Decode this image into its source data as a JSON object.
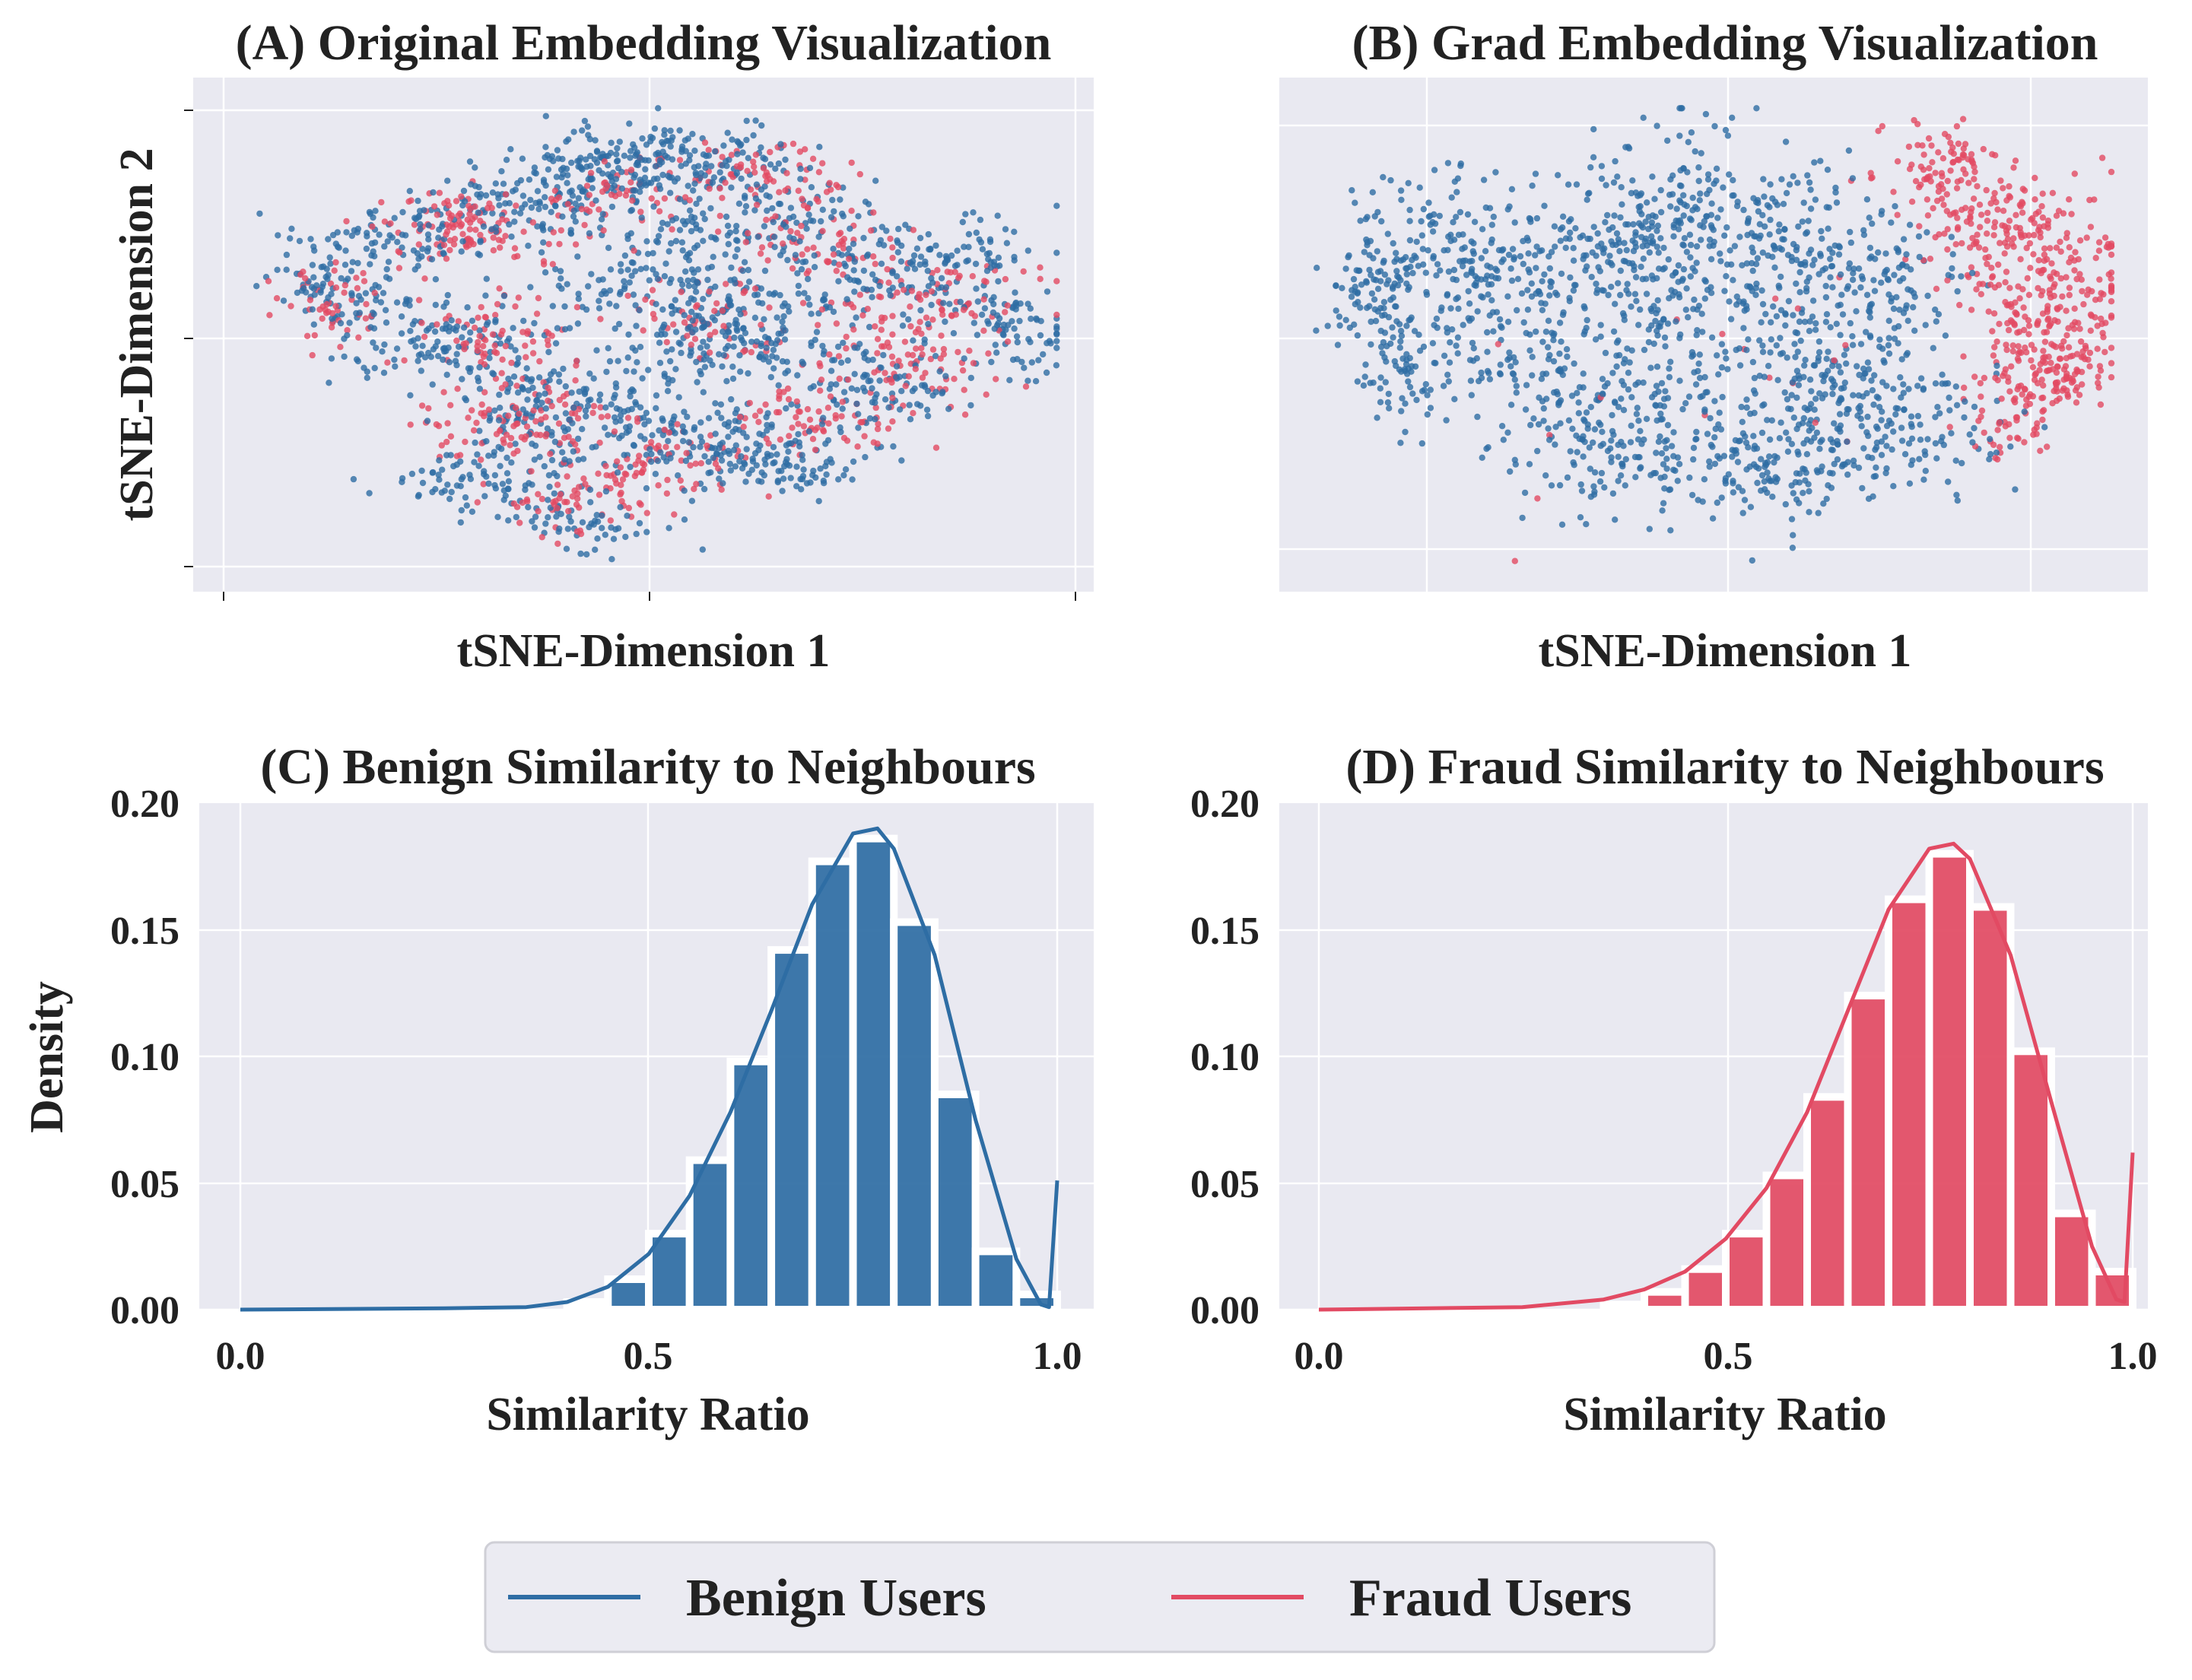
{
  "colors": {
    "benign": "#2e6da4",
    "fraud": "#e24a63",
    "panel_bg": "#e9e9f1",
    "grid": "#ffffff"
  },
  "legend": {
    "benign": "Benign Users",
    "fraud": "Fraud Users"
  },
  "chart_data": [
    {
      "id": "A",
      "type": "scatter",
      "title": "(A) Original Embedding Visualization",
      "xlabel": "tSNE-Dimension 1",
      "ylabel": "tSNE-Dimension 2",
      "xlim": [
        -6,
        6
      ],
      "ylim": [
        -6,
        6
      ],
      "grid": true,
      "series": [
        {
          "name": "Benign Users",
          "color_key": "benign",
          "clusters": [
            {
              "cx": -4.3,
              "cy": 1.2,
              "sx": 0.5,
              "sy": 0.6,
              "n": 90
            },
            {
              "cx": -3.5,
              "cy": 2.4,
              "sx": 0.6,
              "sy": 0.5,
              "n": 80
            },
            {
              "cx": -2.8,
              "cy": -0.3,
              "sx": 0.7,
              "sy": 0.6,
              "n": 120
            },
            {
              "cx": -1.8,
              "cy": 3.2,
              "sx": 0.6,
              "sy": 0.5,
              "n": 90
            },
            {
              "cx": -0.5,
              "cy": 4.0,
              "sx": 0.8,
              "sy": 0.6,
              "n": 140
            },
            {
              "cx": 0.5,
              "cy": 4.5,
              "sx": 0.9,
              "sy": 0.5,
              "n": 140
            },
            {
              "cx": 1.6,
              "cy": 3.0,
              "sx": 0.8,
              "sy": 0.6,
              "n": 120
            },
            {
              "cx": 1.3,
              "cy": -0.2,
              "sx": 0.7,
              "sy": 0.8,
              "n": 160
            },
            {
              "cx": 0.3,
              "cy": 1.2,
              "sx": 0.9,
              "sy": 0.7,
              "n": 140
            },
            {
              "cx": -1.2,
              "cy": -1.8,
              "sx": 0.9,
              "sy": 0.7,
              "n": 150
            },
            {
              "cx": 0.6,
              "cy": -2.7,
              "sx": 0.8,
              "sy": 0.5,
              "n": 120
            },
            {
              "cx": 1.8,
              "cy": -3.3,
              "sx": 0.6,
              "sy": 0.5,
              "n": 90
            },
            {
              "cx": 3.0,
              "cy": 1.5,
              "sx": 0.8,
              "sy": 0.6,
              "n": 110
            },
            {
              "cx": 3.4,
              "cy": -1.5,
              "sx": 0.7,
              "sy": 0.6,
              "n": 100
            },
            {
              "cx": 5.2,
              "cy": 0.1,
              "sx": 0.5,
              "sy": 0.6,
              "n": 80
            },
            {
              "cx": -2.2,
              "cy": -3.6,
              "sx": 0.7,
              "sy": 0.5,
              "n": 90
            },
            {
              "cx": 4.3,
              "cy": 2.1,
              "sx": 0.6,
              "sy": 0.5,
              "n": 70
            },
            {
              "cx": -0.8,
              "cy": -4.8,
              "sx": 0.6,
              "sy": 0.4,
              "n": 60
            }
          ]
        },
        {
          "name": "Fraud Users",
          "color_key": "fraud",
          "clusters": [
            {
              "cx": -4.5,
              "cy": 0.8,
              "sx": 0.4,
              "sy": 0.6,
              "n": 50
            },
            {
              "cx": -2.3,
              "cy": 2.6,
              "sx": 0.6,
              "sy": 0.5,
              "n": 70
            },
            {
              "cx": -2.0,
              "cy": -0.1,
              "sx": 0.6,
              "sy": 0.6,
              "n": 70
            },
            {
              "cx": -0.4,
              "cy": 3.5,
              "sx": 0.6,
              "sy": 0.5,
              "n": 60
            },
            {
              "cx": 1.8,
              "cy": 4.1,
              "sx": 0.7,
              "sy": 0.5,
              "n": 70
            },
            {
              "cx": 0.9,
              "cy": 0.3,
              "sx": 0.6,
              "sy": 0.5,
              "n": 60
            },
            {
              "cx": -1.7,
              "cy": -2.4,
              "sx": 0.7,
              "sy": 0.6,
              "n": 100
            },
            {
              "cx": 0.2,
              "cy": -3.3,
              "sx": 0.6,
              "sy": 0.5,
              "n": 70
            },
            {
              "cx": 2.3,
              "cy": -2.3,
              "sx": 0.7,
              "sy": 0.5,
              "n": 80
            },
            {
              "cx": 3.8,
              "cy": -0.8,
              "sx": 0.6,
              "sy": 0.6,
              "n": 70
            },
            {
              "cx": 4.1,
              "cy": 0.9,
              "sx": 0.7,
              "sy": 0.5,
              "n": 80
            },
            {
              "cx": 2.5,
              "cy": 2.3,
              "sx": 0.6,
              "sy": 0.5,
              "n": 60
            },
            {
              "cx": -3.0,
              "cy": 3.0,
              "sx": 0.5,
              "sy": 0.4,
              "n": 40
            },
            {
              "cx": -1.0,
              "cy": -4.3,
              "sx": 0.6,
              "sy": 0.4,
              "n": 50
            }
          ]
        }
      ]
    },
    {
      "id": "B",
      "type": "scatter",
      "title": "(B) Grad Embedding Visualization",
      "xlabel": "tSNE-Dimension 1",
      "ylabel": "",
      "xlim": [
        -6,
        6
      ],
      "ylim": [
        -6,
        6
      ],
      "grid": true,
      "series": [
        {
          "name": "Benign Users",
          "color_key": "benign",
          "clusters": [
            {
              "cx": -4.9,
              "cy": 1.2,
              "sx": 0.4,
              "sy": 1.2,
              "n": 120
            },
            {
              "cx": -4.4,
              "cy": -0.8,
              "sx": 0.4,
              "sy": 0.8,
              "n": 70
            },
            {
              "cx": -3.6,
              "cy": 1.8,
              "sx": 0.6,
              "sy": 1.2,
              "n": 150
            },
            {
              "cx": -2.5,
              "cy": 0.3,
              "sx": 0.7,
              "sy": 1.4,
              "n": 170
            },
            {
              "cx": -1.6,
              "cy": -2.6,
              "sx": 0.8,
              "sy": 1.0,
              "n": 150
            },
            {
              "cx": -0.5,
              "cy": -0.2,
              "sx": 0.7,
              "sy": 1.8,
              "n": 200
            },
            {
              "cx": -0.2,
              "cy": 3.2,
              "sx": 0.7,
              "sy": 1.2,
              "n": 140
            },
            {
              "cx": 0.8,
              "cy": -3.3,
              "sx": 0.9,
              "sy": 0.8,
              "n": 160
            },
            {
              "cx": 1.2,
              "cy": 1.8,
              "sx": 0.8,
              "sy": 1.3,
              "n": 170
            },
            {
              "cx": 1.9,
              "cy": -1.3,
              "sx": 0.6,
              "sy": 1.2,
              "n": 120
            },
            {
              "cx": 2.9,
              "cy": -2.3,
              "sx": 0.7,
              "sy": 1.0,
              "n": 120
            },
            {
              "cx": 2.7,
              "cy": 1.0,
              "sx": 0.5,
              "sy": 1.0,
              "n": 80
            },
            {
              "cx": -1.2,
              "cy": 2.4,
              "sx": 0.6,
              "sy": 0.9,
              "n": 100
            }
          ]
        },
        {
          "name": "Fraud Users",
          "color_key": "fraud",
          "clusters": [
            {
              "cx": 3.4,
              "cy": 4.3,
              "sx": 0.5,
              "sy": 0.6,
              "n": 90
            },
            {
              "cx": 4.2,
              "cy": 2.8,
              "sx": 0.6,
              "sy": 0.7,
              "n": 130
            },
            {
              "cx": 4.9,
              "cy": 0.8,
              "sx": 0.6,
              "sy": 0.9,
              "n": 180
            },
            {
              "cx": 5.0,
              "cy": -0.9,
              "sx": 0.5,
              "sy": 0.6,
              "n": 110
            },
            {
              "cx": 4.3,
              "cy": -2.3,
              "sx": 0.4,
              "sy": 0.5,
              "n": 50
            },
            {
              "cx": 0.5,
              "cy": 0.0,
              "sx": 2.5,
              "sy": 2.5,
              "n": 25
            }
          ]
        }
      ]
    },
    {
      "id": "C",
      "type": "bar",
      "title": "(C) Benign Similarity to Neighbours",
      "xlabel": "Similarity Ratio",
      "ylabel": "Density",
      "xlim": [
        -0.05,
        1.05
      ],
      "ylim": [
        0,
        0.2
      ],
      "xticks": [
        "0.0",
        "0.5",
        "1.0"
      ],
      "yticks": [
        "0.00",
        "0.05",
        "0.10",
        "0.15",
        "0.20"
      ],
      "grid": true,
      "color_key": "benign",
      "bin_width": 0.05,
      "bins": [
        {
          "x": 0.425,
          "value": 0.003
        },
        {
          "x": 0.475,
          "value": 0.012
        },
        {
          "x": 0.525,
          "value": 0.03
        },
        {
          "x": 0.575,
          "value": 0.059
        },
        {
          "x": 0.625,
          "value": 0.098
        },
        {
          "x": 0.675,
          "value": 0.142
        },
        {
          "x": 0.725,
          "value": 0.177
        },
        {
          "x": 0.775,
          "value": 0.186
        },
        {
          "x": 0.825,
          "value": 0.153
        },
        {
          "x": 0.875,
          "value": 0.085
        },
        {
          "x": 0.925,
          "value": 0.023
        },
        {
          "x": 0.975,
          "value": 0.006
        }
      ],
      "kde": {
        "x": [
          0.0,
          0.25,
          0.35,
          0.4,
          0.45,
          0.5,
          0.55,
          0.6,
          0.65,
          0.7,
          0.75,
          0.78,
          0.8,
          0.85,
          0.9,
          0.95,
          0.98,
          0.99,
          1.0
        ],
        "y": [
          0.0,
          0.0005,
          0.001,
          0.003,
          0.009,
          0.022,
          0.045,
          0.078,
          0.118,
          0.16,
          0.188,
          0.19,
          0.182,
          0.14,
          0.075,
          0.02,
          0.002,
          0.001,
          0.051
        ]
      }
    },
    {
      "id": "D",
      "type": "bar",
      "title": "(D) Fraud Similarity to Neighbours",
      "xlabel": "Similarity Ratio",
      "ylabel": "",
      "xlim": [
        -0.05,
        1.05
      ],
      "ylim": [
        0,
        0.2
      ],
      "xticks": [
        "0.0",
        "0.5",
        "1.0"
      ],
      "yticks": [
        "0.00",
        "0.05",
        "0.10",
        "0.15",
        "0.20"
      ],
      "grid": true,
      "color_key": "fraud",
      "bin_width": 0.05,
      "bins": [
        {
          "x": 0.375,
          "value": 0.002
        },
        {
          "x": 0.425,
          "value": 0.007
        },
        {
          "x": 0.475,
          "value": 0.016
        },
        {
          "x": 0.525,
          "value": 0.03
        },
        {
          "x": 0.575,
          "value": 0.053
        },
        {
          "x": 0.625,
          "value": 0.084
        },
        {
          "x": 0.675,
          "value": 0.124
        },
        {
          "x": 0.725,
          "value": 0.162
        },
        {
          "x": 0.775,
          "value": 0.18
        },
        {
          "x": 0.825,
          "value": 0.159
        },
        {
          "x": 0.875,
          "value": 0.102
        },
        {
          "x": 0.925,
          "value": 0.038
        },
        {
          "x": 0.975,
          "value": 0.015
        }
      ],
      "kde": {
        "x": [
          0.0,
          0.25,
          0.35,
          0.4,
          0.45,
          0.5,
          0.55,
          0.6,
          0.65,
          0.7,
          0.75,
          0.78,
          0.8,
          0.85,
          0.9,
          0.95,
          0.98,
          0.99,
          1.0
        ],
        "y": [
          0.0,
          0.001,
          0.004,
          0.008,
          0.015,
          0.028,
          0.048,
          0.078,
          0.118,
          0.158,
          0.182,
          0.184,
          0.178,
          0.14,
          0.082,
          0.025,
          0.004,
          0.003,
          0.062
        ]
      }
    }
  ]
}
